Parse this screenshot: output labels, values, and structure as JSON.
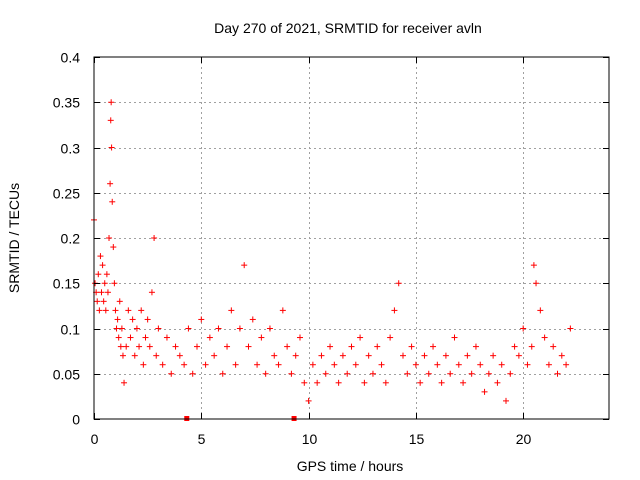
{
  "chart_data": {
    "type": "scatter",
    "title": "Day 270 of 2021, SRMTID for receiver avln",
    "xlabel": "GPS time / hours",
    "ylabel": "SRMTID / TECUs",
    "xlim": [
      0,
      24
    ],
    "ylim": [
      0,
      0.4
    ],
    "x_ticks": [
      0,
      5,
      10,
      15,
      20
    ],
    "y_ticks": [
      0,
      0.05,
      0.1,
      0.15,
      0.2,
      0.25,
      0.3,
      0.35,
      0.4
    ],
    "x_tick_labels": [
      "0",
      "5",
      "10",
      "15",
      "20"
    ],
    "y_tick_labels": [
      "0",
      "0.05",
      "0.1",
      "0.15",
      "0.2",
      "0.25",
      "0.3",
      "0.35",
      "0.4"
    ],
    "grid": true,
    "marker": "+",
    "series_color": "#ff0000",
    "x_axis_markers": [
      4.3,
      9.3
    ],
    "series": [
      {
        "name": "SRMTID",
        "x": [
          0.0,
          0.05,
          0.1,
          0.15,
          0.2,
          0.25,
          0.3,
          0.35,
          0.4,
          0.45,
          0.5,
          0.55,
          0.6,
          0.65,
          0.7,
          0.75,
          0.78,
          0.8,
          0.82,
          0.85,
          0.9,
          0.95,
          1.0,
          1.05,
          1.1,
          1.15,
          1.2,
          1.25,
          1.3,
          1.35,
          1.4,
          1.5,
          1.6,
          1.7,
          1.8,
          1.9,
          2.0,
          2.1,
          2.2,
          2.3,
          2.4,
          2.5,
          2.6,
          2.7,
          2.8,
          2.9,
          3.0,
          3.2,
          3.4,
          3.6,
          3.8,
          4.0,
          4.2,
          4.4,
          4.6,
          4.8,
          5.0,
          5.2,
          5.4,
          5.6,
          5.8,
          6.0,
          6.2,
          6.4,
          6.6,
          6.8,
          7.0,
          7.2,
          7.4,
          7.6,
          7.8,
          8.0,
          8.2,
          8.4,
          8.6,
          8.8,
          9.0,
          9.2,
          9.4,
          9.6,
          9.8,
          10.0,
          10.2,
          10.4,
          10.6,
          10.8,
          11.0,
          11.2,
          11.4,
          11.6,
          11.8,
          12.0,
          12.2,
          12.4,
          12.6,
          12.8,
          13.0,
          13.2,
          13.4,
          13.6,
          13.8,
          14.0,
          14.2,
          14.4,
          14.6,
          14.8,
          15.0,
          15.2,
          15.4,
          15.6,
          15.8,
          16.0,
          16.2,
          16.4,
          16.6,
          16.8,
          17.0,
          17.2,
          17.4,
          17.6,
          17.8,
          18.0,
          18.2,
          18.4,
          18.6,
          18.8,
          19.0,
          19.2,
          19.4,
          19.6,
          19.8,
          20.0,
          20.2,
          20.4,
          20.5,
          20.6,
          20.8,
          21.0,
          21.2,
          21.4,
          21.6,
          21.8,
          22.0,
          22.2
        ],
        "y": [
          0.22,
          0.15,
          0.14,
          0.13,
          0.16,
          0.12,
          0.18,
          0.14,
          0.17,
          0.13,
          0.15,
          0.12,
          0.16,
          0.14,
          0.2,
          0.26,
          0.33,
          0.35,
          0.3,
          0.24,
          0.19,
          0.15,
          0.12,
          0.1,
          0.11,
          0.09,
          0.13,
          0.08,
          0.1,
          0.07,
          0.04,
          0.08,
          0.12,
          0.09,
          0.11,
          0.07,
          0.1,
          0.08,
          0.12,
          0.06,
          0.09,
          0.11,
          0.08,
          0.14,
          0.2,
          0.07,
          0.1,
          0.06,
          0.09,
          0.05,
          0.08,
          0.07,
          0.06,
          0.1,
          0.05,
          0.08,
          0.11,
          0.06,
          0.09,
          0.07,
          0.1,
          0.05,
          0.08,
          0.12,
          0.06,
          0.1,
          0.17,
          0.08,
          0.11,
          0.06,
          0.09,
          0.05,
          0.1,
          0.07,
          0.06,
          0.12,
          0.08,
          0.05,
          0.07,
          0.09,
          0.04,
          0.02,
          0.06,
          0.04,
          0.07,
          0.05,
          0.08,
          0.06,
          0.04,
          0.07,
          0.05,
          0.08,
          0.06,
          0.09,
          0.04,
          0.07,
          0.05,
          0.08,
          0.06,
          0.04,
          0.09,
          0.12,
          0.15,
          0.07,
          0.05,
          0.08,
          0.06,
          0.04,
          0.07,
          0.05,
          0.08,
          0.06,
          0.04,
          0.07,
          0.05,
          0.09,
          0.06,
          0.04,
          0.07,
          0.05,
          0.08,
          0.06,
          0.03,
          0.05,
          0.07,
          0.04,
          0.06,
          0.02,
          0.05,
          0.08,
          0.07,
          0.1,
          0.06,
          0.08,
          0.17,
          0.15,
          0.12,
          0.09,
          0.06,
          0.08,
          0.05,
          0.07,
          0.06,
          0.1
        ]
      }
    ]
  }
}
